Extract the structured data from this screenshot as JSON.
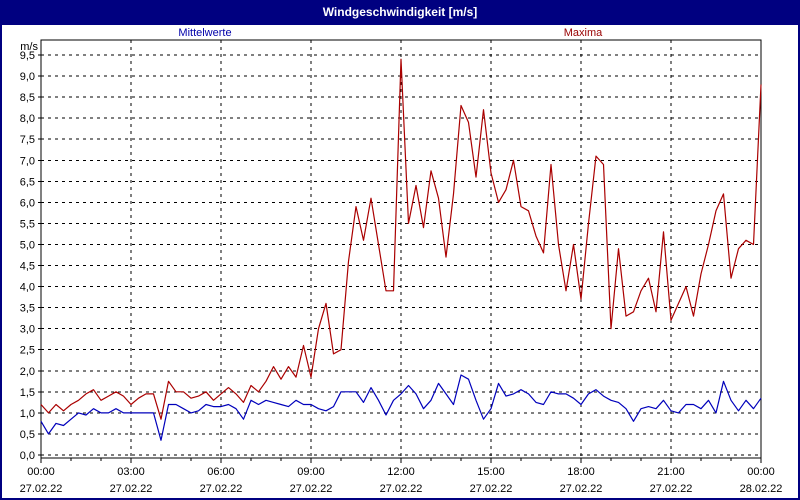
{
  "window": {
    "title": "Windgeschwindigkeit [m/s]"
  },
  "colors": {
    "title_bg": "#000080",
    "title_text": "#ffffff",
    "frame_border": "#000080",
    "grid": "#000000",
    "axis_text": "#000000",
    "mean_series": "#0000bb",
    "max_series": "#aa0000",
    "legend_mean_text": "#0000aa",
    "legend_max_text": "#990000"
  },
  "legend": {
    "mean": "Mittelwerte",
    "max": "Maxima"
  },
  "chart_data": {
    "type": "line",
    "title": "Windgeschwindigkeit [m/s]",
    "ylabel": "m/s",
    "ylim": [
      0,
      9.5
    ],
    "ytick_step": 0.5,
    "yticks": [
      "9,5",
      "9,0",
      "8,5",
      "8,0",
      "7,5",
      "7,0",
      "6,5",
      "6,0",
      "5,5",
      "5,0",
      "4,5",
      "4,0",
      "3,5",
      "3,0",
      "2,5",
      "2,0",
      "1,5",
      "1,0",
      "0,5",
      "0,0"
    ],
    "xlim": [
      0,
      24
    ],
    "xticks": [
      {
        "h": 0,
        "time": "00:00",
        "date": "27.02.22"
      },
      {
        "h": 3,
        "time": "03:00",
        "date": "27.02.22"
      },
      {
        "h": 6,
        "time": "06:00",
        "date": "27.02.22"
      },
      {
        "h": 9,
        "time": "09:00",
        "date": "27.02.22"
      },
      {
        "h": 12,
        "time": "12:00",
        "date": "27.02.22"
      },
      {
        "h": 15,
        "time": "15:00",
        "date": "27.02.22"
      },
      {
        "h": 18,
        "time": "18:00",
        "date": "27.02.22"
      },
      {
        "h": 21,
        "time": "21:00",
        "date": "27.02.22"
      },
      {
        "h": 24,
        "time": "00:00",
        "date": "28.02.22"
      }
    ],
    "grid": "dashed",
    "legend_position": "top",
    "sample_hours": 0.25,
    "series": [
      {
        "name": "Mittelwerte",
        "color": "#0000bb",
        "values": [
          0.8,
          0.5,
          0.75,
          0.7,
          0.85,
          1.0,
          0.95,
          1.1,
          1.0,
          1.0,
          1.1,
          1.0,
          1.0,
          1.0,
          1.0,
          1.0,
          0.35,
          1.2,
          1.2,
          1.1,
          1.0,
          1.05,
          1.2,
          1.15,
          1.15,
          1.2,
          1.1,
          0.85,
          1.3,
          1.2,
          1.3,
          1.25,
          1.2,
          1.15,
          1.3,
          1.2,
          1.2,
          1.1,
          1.05,
          1.15,
          1.5,
          1.5,
          1.5,
          1.25,
          1.6,
          1.3,
          0.95,
          1.3,
          1.45,
          1.65,
          1.45,
          1.1,
          1.3,
          1.7,
          1.45,
          1.2,
          1.9,
          1.8,
          1.3,
          0.85,
          1.1,
          1.7,
          1.4,
          1.45,
          1.55,
          1.45,
          1.25,
          1.2,
          1.5,
          1.45,
          1.45,
          1.35,
          1.2,
          1.45,
          1.55,
          1.4,
          1.3,
          1.25,
          1.1,
          0.8,
          1.1,
          1.15,
          1.1,
          1.3,
          1.05,
          1.0,
          1.2,
          1.2,
          1.1,
          1.3,
          1.0,
          1.75,
          1.3,
          1.05,
          1.3,
          1.1,
          1.35
        ]
      },
      {
        "name": "Maxima",
        "color": "#aa0000",
        "values": [
          1.2,
          1.0,
          1.2,
          1.05,
          1.2,
          1.3,
          1.45,
          1.55,
          1.3,
          1.4,
          1.5,
          1.4,
          1.2,
          1.35,
          1.45,
          1.45,
          0.85,
          1.75,
          1.5,
          1.5,
          1.35,
          1.4,
          1.5,
          1.3,
          1.45,
          1.6,
          1.45,
          1.25,
          1.65,
          1.5,
          1.75,
          2.1,
          1.8,
          2.1,
          1.85,
          2.6,
          1.85,
          3.0,
          3.6,
          2.4,
          2.5,
          4.6,
          5.9,
          5.1,
          6.1,
          5.0,
          3.9,
          3.9,
          9.4,
          5.5,
          6.4,
          5.4,
          6.75,
          6.1,
          4.7,
          6.2,
          8.3,
          7.9,
          6.6,
          8.2,
          6.7,
          6.0,
          6.3,
          7.0,
          5.9,
          5.8,
          5.2,
          4.8,
          6.9,
          5.0,
          3.9,
          5.0,
          3.7,
          5.5,
          7.1,
          6.9,
          3.0,
          4.9,
          3.3,
          3.4,
          3.9,
          4.2,
          3.4,
          5.3,
          3.2,
          3.6,
          4.0,
          3.3,
          4.3,
          5.0,
          5.8,
          6.2,
          4.2,
          4.9,
          5.1,
          5.0,
          8.8
        ]
      }
    ]
  }
}
